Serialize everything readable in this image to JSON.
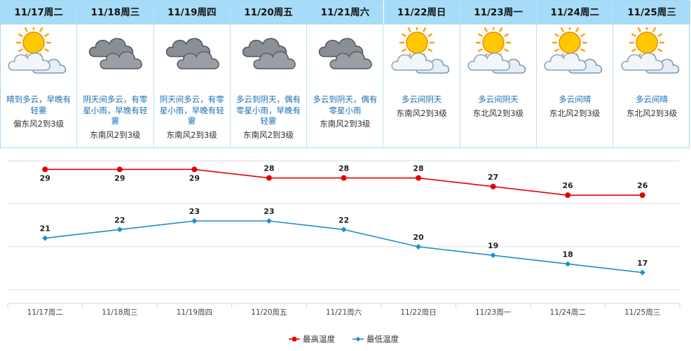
{
  "days": [
    {
      "date": "11/17周二",
      "icon": "sun-cloud-icon",
      "desc": "晴到多云，早晚有轻雾",
      "wind": "偏东风2到3级"
    },
    {
      "date": "11/18周三",
      "icon": "overcast-icon",
      "desc": "阴天间多云，有零星小雨，早晚有轻雾",
      "wind": "东南风2到3级"
    },
    {
      "date": "11/19周四",
      "icon": "overcast-icon",
      "desc": "阴天间多云，有零星小雨，早晚有轻雾",
      "wind": "东南风2到3级"
    },
    {
      "date": "11/20周五",
      "icon": "overcast-icon",
      "desc": "多云到阴天，偶有零星小雨，早晚有轻雾",
      "wind": "东南风2到3级"
    },
    {
      "date": "11/21周六",
      "icon": "overcast-icon",
      "desc": "多云到阴天，偶有零星小雨",
      "wind": "东南风2到3级"
    },
    {
      "date": "11/22周日",
      "icon": "sun-cloud-icon",
      "desc": "多云间阴天",
      "wind": "东南风2到3级"
    },
    {
      "date": "11/23周一",
      "icon": "sun-cloud-icon",
      "desc": "多云间阴天",
      "wind": "东北风2到3级"
    },
    {
      "date": "11/24周二",
      "icon": "sun-cloud-icon",
      "desc": "多云间晴",
      "wind": "东北风2到3级"
    },
    {
      "date": "11/25周三",
      "icon": "sun-cloud-icon",
      "desc": "多云间晴",
      "wind": "东北风2到3级"
    }
  ],
  "chart_data": {
    "type": "line",
    "categories": [
      "11/17周二",
      "11/18周三",
      "11/19周四",
      "11/20周五",
      "11/21周六",
      "11/22周日",
      "11/23周一",
      "11/24周二",
      "11/25周三"
    ],
    "series": [
      {
        "name": "最高温度",
        "values": [
          29,
          29,
          29,
          28,
          28,
          28,
          27,
          26,
          26
        ],
        "color": "#e60000",
        "marker": "circle"
      },
      {
        "name": "最低温度",
        "values": [
          21,
          22,
          23,
          23,
          22,
          20,
          19,
          18,
          17
        ],
        "color": "#1a8fc9",
        "marker": "diamond"
      }
    ],
    "title": "",
    "xlabel": "",
    "ylabel": "",
    "ylim": [
      13.4,
      31.3
    ],
    "grid": true,
    "legend": "bottom-center"
  }
}
